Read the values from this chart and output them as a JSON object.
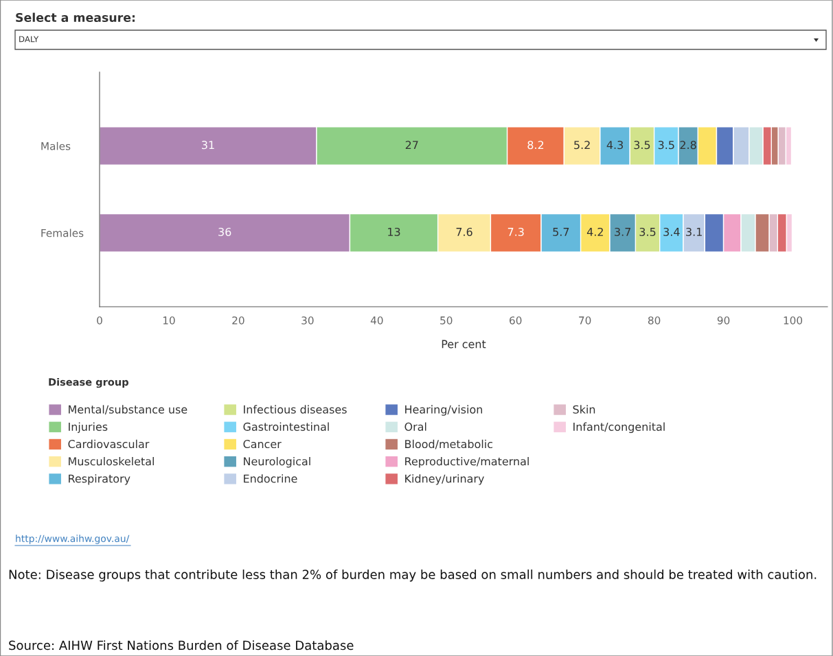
{
  "chart_data": {
    "type": "bar",
    "orientation": "horizontal",
    "xlabel": "Per cent",
    "legend_title": "Disease group",
    "categories": [
      "Males",
      "Females"
    ],
    "xlim": [
      0,
      105
    ],
    "xticks": [
      0,
      10,
      20,
      30,
      40,
      50,
      60,
      70,
      80,
      90,
      100
    ],
    "grid": false,
    "legend": "bottom",
    "series": [
      {
        "name": "Mental/substance use",
        "color": "#ae85b3",
        "values": [
          31.3,
          36.1
        ],
        "base": [
          0,
          0
        ],
        "value_labels": [
          "31",
          "36"
        ]
      },
      {
        "name": "Injuries",
        "color": "#8ecf85",
        "values": [
          27.5,
          12.7
        ],
        "base": [
          31.3,
          36.1
        ],
        "value_labels": [
          "27",
          "13"
        ]
      },
      {
        "name": "Cardiovascular",
        "color": "#ec744a",
        "values": [
          8.2,
          7.3
        ],
        "base": [
          58.8,
          56.4
        ],
        "value_labels": [
          "8.2",
          "7.3"
        ]
      },
      {
        "name": "Musculoskeletal",
        "color": "#fdeaa0",
        "values": [
          5.2,
          7.6
        ],
        "base": [
          67.0,
          48.8
        ],
        "value_labels": [
          "5.2",
          "7.6"
        ]
      },
      {
        "name": "Respiratory",
        "color": "#64b9dc",
        "values": [
          4.3,
          5.7
        ],
        "base": [
          72.2,
          63.7
        ],
        "value_labels": [
          "4.3",
          "5.7"
        ]
      },
      {
        "name": "Infectious diseases",
        "color": "#d2e38b",
        "values": [
          3.5,
          3.5
        ],
        "base": [
          76.5,
          77.3
        ],
        "value_labels": [
          "3.5",
          "3.5"
        ]
      },
      {
        "name": "Gastrointestinal",
        "color": "#7bd4f5",
        "values": [
          3.5,
          3.4
        ],
        "base": [
          80.0,
          80.8
        ],
        "value_labels": [
          "3.5",
          "3.4"
        ]
      },
      {
        "name": "Cancer",
        "color": "#fce263",
        "values": [
          2.7,
          4.2
        ],
        "base": [
          86.3,
          69.4
        ],
        "value_labels": [
          null,
          "4.2"
        ]
      },
      {
        "name": "Neurological",
        "color": "#5fa2ba",
        "values": [
          2.8,
          3.7
        ],
        "base": [
          83.5,
          73.6
        ],
        "value_labels": [
          "2.8",
          "3.7"
        ]
      },
      {
        "name": "Endocrine",
        "color": "#bfcfe8",
        "values": [
          2.3,
          3.1
        ],
        "base": [
          91.4,
          84.2
        ],
        "value_labels": [
          null,
          "3.1"
        ]
      },
      {
        "name": "Hearing/vision",
        "color": "#5b79bf",
        "values": [
          2.4,
          2.7
        ],
        "base": [
          89.0,
          87.3
        ],
        "value_labels": [
          null,
          null
        ]
      },
      {
        "name": "Oral",
        "color": "#cfe8e6",
        "values": [
          2.0,
          2.1
        ],
        "base": [
          93.7,
          92.5
        ],
        "value_labels": [
          null,
          null
        ]
      },
      {
        "name": "Blood/metabolic",
        "color": "#bd7b6e",
        "values": [
          1.0,
          2.0
        ],
        "base": [
          96.9,
          94.6
        ],
        "value_labels": [
          null,
          null
        ]
      },
      {
        "name": "Reproductive/maternal",
        "color": "#f1a3c7",
        "values": [
          null,
          2.5
        ],
        "base": [
          null,
          90.0
        ],
        "value_labels": [
          null,
          null
        ]
      },
      {
        "name": "Kidney/urinary",
        "color": "#dc6b6e",
        "values": [
          1.2,
          1.3
        ],
        "base": [
          95.7,
          97.8
        ],
        "value_labels": [
          null,
          null
        ]
      },
      {
        "name": "Skin",
        "color": "#dfbbc8",
        "values": [
          1.1,
          1.2
        ],
        "base": [
          97.9,
          96.6
        ],
        "value_labels": [
          null,
          null
        ]
      },
      {
        "name": "Infant/congenital",
        "color": "#f6cbdf",
        "values": [
          0.8,
          0.8
        ],
        "base": [
          99.0,
          99.1
        ],
        "value_labels": [
          null,
          null
        ]
      }
    ],
    "annotations": [
      "Select a measure:",
      "DALY",
      "http://www.aihw.gov.au/",
      "Note: Disease groups that contribute less than 2% of burden may be based on small numbers and should be treated with caution.",
      "Source: AIHW First Nations Burden of Disease Database"
    ]
  }
}
